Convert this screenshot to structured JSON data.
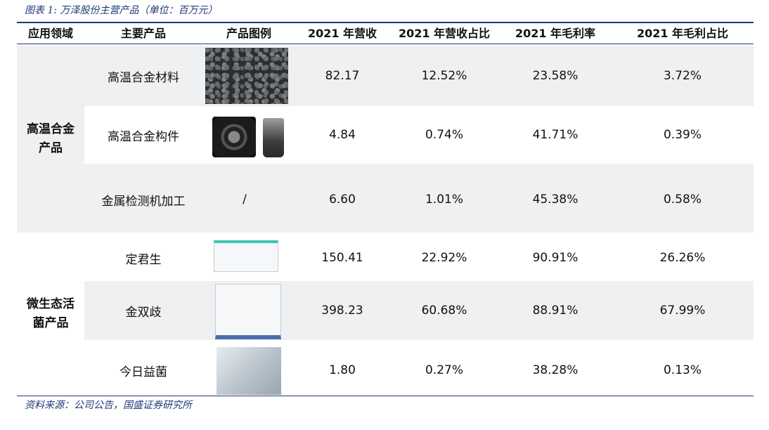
{
  "caption": "图表 1: 万泽股份主营产品（单位：百万元）",
  "headers": {
    "domain": "应用领域",
    "product": "主要产品",
    "image": "产品图例",
    "revenue": "2021 年营收",
    "revenue_share": "2021 年营收占比",
    "gross_margin": "2021 年毛利率",
    "gross_profit_share": "2021 年毛利占比"
  },
  "groups": [
    {
      "domain_line1": "高温合金",
      "domain_line2": "产品",
      "rows": [
        {
          "product": "高温合金材料",
          "image_icon": "alloy-pellets-photo",
          "revenue": "82.17",
          "revenue_share": "12.52%",
          "gross_margin": "23.58%",
          "gross_profit_share": "3.72%"
        },
        {
          "product": "高温合金构件",
          "image_icon": "turbine-blade-photo",
          "revenue": "4.84",
          "revenue_share": "0.74%",
          "gross_margin": "41.71%",
          "gross_profit_share": "0.39%"
        },
        {
          "product": "金属检测机加工",
          "image_text": "/",
          "revenue": "6.60",
          "revenue_share": "1.01%",
          "gross_margin": "45.38%",
          "gross_profit_share": "0.58%"
        }
      ]
    },
    {
      "domain_line1": "微生态活",
      "domain_line2": "菌产品",
      "rows": [
        {
          "product": "定君生",
          "image_icon": "medicine-box-photo",
          "revenue": "150.41",
          "revenue_share": "22.92%",
          "gross_margin": "90.91%",
          "gross_profit_share": "26.26%"
        },
        {
          "product": "金双歧",
          "image_icon": "medicine-box-photo",
          "revenue": "398.23",
          "revenue_share": "60.68%",
          "gross_margin": "88.91%",
          "gross_profit_share": "67.99%"
        },
        {
          "product": "今日益菌",
          "image_icon": "product-package-photo",
          "revenue": "1.80",
          "revenue_share": "0.27%",
          "gross_margin": "38.28%",
          "gross_profit_share": "0.13%"
        }
      ]
    }
  ],
  "source": "资料来源：公司公告，国盛证券研究所",
  "colors": {
    "rule": "#1f3a78",
    "band": "#eef0f2"
  }
}
